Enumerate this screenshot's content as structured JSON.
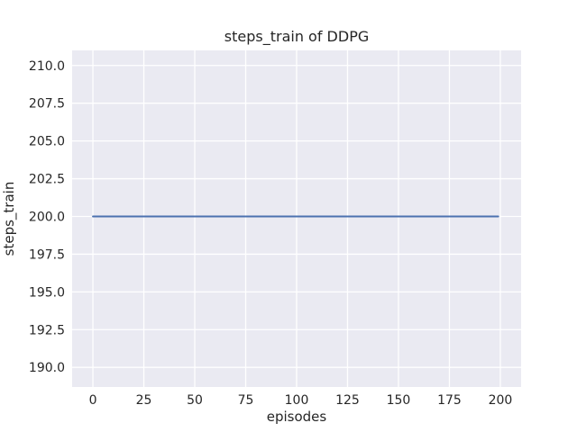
{
  "chart_data": {
    "type": "line",
    "title": "steps_train of DDPG",
    "xlabel": "episodes",
    "ylabel": "steps_train",
    "x_ticks": [
      0,
      25,
      50,
      75,
      100,
      125,
      150,
      175,
      200
    ],
    "x_tick_labels": [
      "0",
      "25",
      "50",
      "75",
      "100",
      "125",
      "150",
      "175",
      "200"
    ],
    "y_ticks": [
      190.0,
      192.5,
      195.0,
      197.5,
      200.0,
      202.5,
      205.0,
      207.5,
      210.0
    ],
    "y_tick_labels": [
      "190.0",
      "192.5",
      "195.0",
      "197.5",
      "200.0",
      "202.5",
      "205.0",
      "207.5",
      "210.0"
    ],
    "xlim": [
      -10.2,
      210.2
    ],
    "ylim": [
      188.7,
      211.0
    ],
    "grid": true,
    "legend": "none",
    "colors": {
      "figure_background": "#ffffff",
      "plot_background": "#eaeaf2",
      "grid": "#ffffff",
      "line": "#4c72b0",
      "text": "#262626"
    },
    "series": [
      {
        "name": "steps_train",
        "x": [
          0,
          199
        ],
        "y": [
          200,
          200
        ],
        "note": "constant value 200 across all 200 episodes"
      }
    ]
  }
}
